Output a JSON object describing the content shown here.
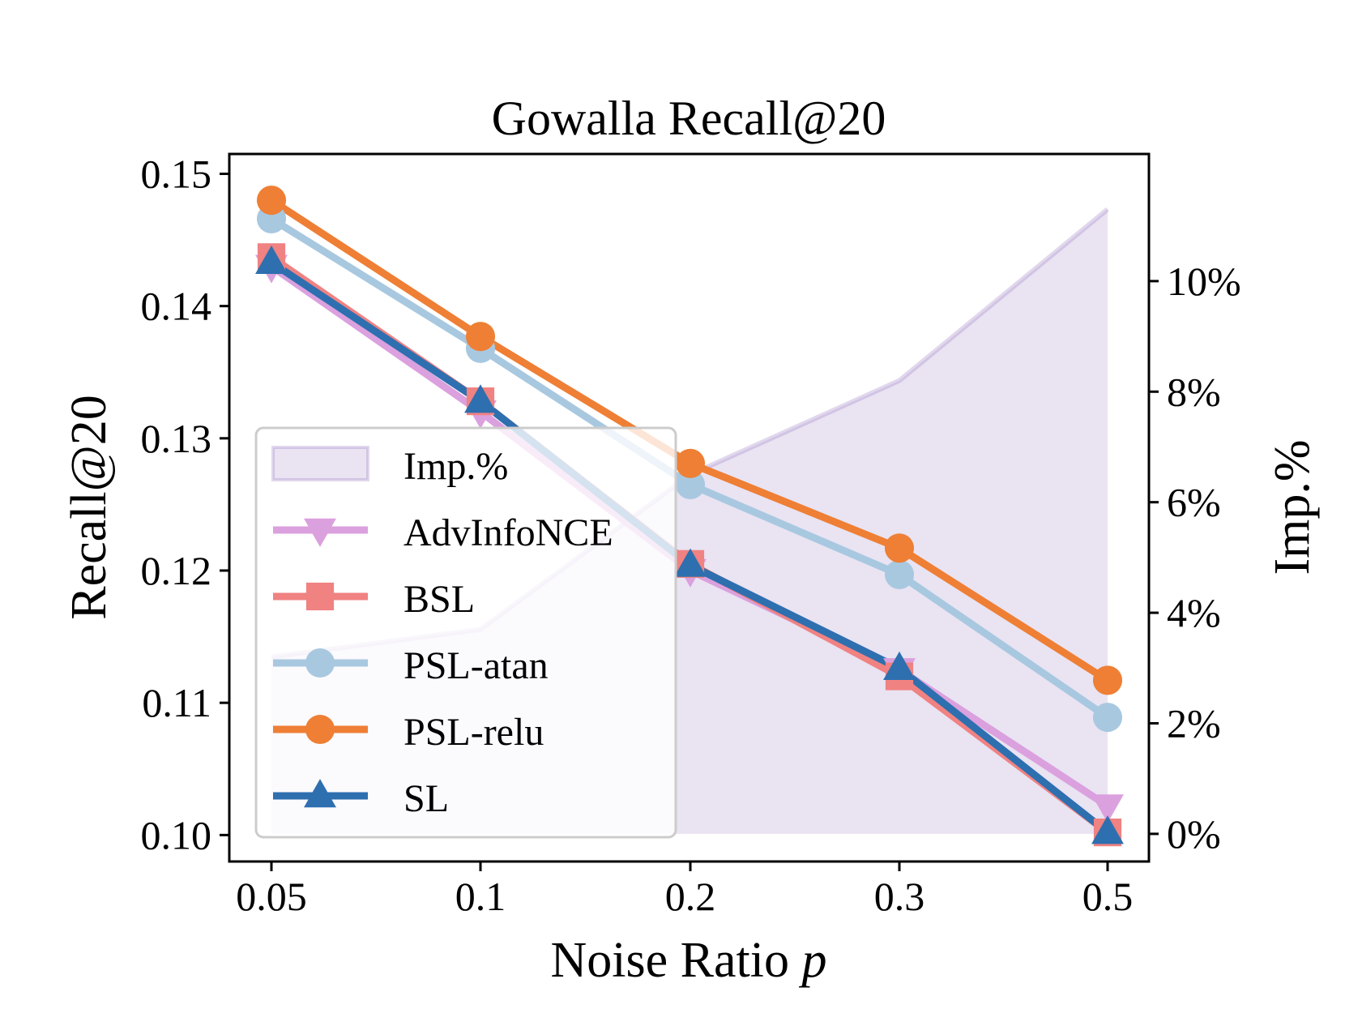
{
  "chart_data": {
    "type": "line",
    "title": "Gowalla  Recall@20",
    "xlabel": "Noise Ratio",
    "xlabel_var": "p",
    "ylabel": "Recall@20",
    "y2label": "Imp.%",
    "categories": [
      "0.05",
      "0.1",
      "0.2",
      "0.3",
      "0.5"
    ],
    "ylim": [
      0.098,
      0.1515
    ],
    "y_ticks": [
      0.1,
      0.11,
      0.12,
      0.13,
      0.14,
      0.15
    ],
    "y_tick_labels": [
      "0.10",
      "0.11",
      "0.12",
      "0.13",
      "0.14",
      "0.15"
    ],
    "y2lim": [
      -0.5,
      12.3
    ],
    "y2_ticks": [
      0,
      2,
      4,
      6,
      8,
      10
    ],
    "y2_tick_labels": [
      "0%",
      "2%",
      "4%",
      "6%",
      "8%",
      "10%"
    ],
    "improvement": {
      "name": "Imp.%",
      "color": "#9b7ec4",
      "values": [
        3.2,
        3.7,
        6.5,
        8.2,
        11.3
      ]
    },
    "series": [
      {
        "name": "AdvInfoNCE",
        "color": "#dba0de",
        "marker": "triangle-down",
        "values": [
          0.143,
          0.132,
          0.12,
          0.1125,
          0.1022
        ]
      },
      {
        "name": "BSL",
        "color": "#f08282",
        "marker": "square",
        "values": [
          0.1437,
          0.1328,
          0.1205,
          0.112,
          0.1002
        ]
      },
      {
        "name": "PSL-atan",
        "color": "#a8c8e0",
        "marker": "circle",
        "values": [
          0.1466,
          0.1368,
          0.1265,
          0.1197,
          0.1089
        ]
      },
      {
        "name": "PSL-relu",
        "color": "#ee7f35",
        "marker": "circle",
        "values": [
          0.148,
          0.1377,
          0.1281,
          0.1217,
          0.1117
        ]
      },
      {
        "name": "SL",
        "color": "#2e6faf",
        "marker": "triangle-up",
        "values": [
          0.1433,
          0.1328,
          0.1204,
          0.1126,
          0.1002
        ]
      }
    ],
    "legend": {
      "position": "lower-left",
      "items": [
        "Imp.%",
        "AdvInfoNCE",
        "BSL",
        "PSL-atan",
        "PSL-relu",
        "SL"
      ]
    }
  }
}
